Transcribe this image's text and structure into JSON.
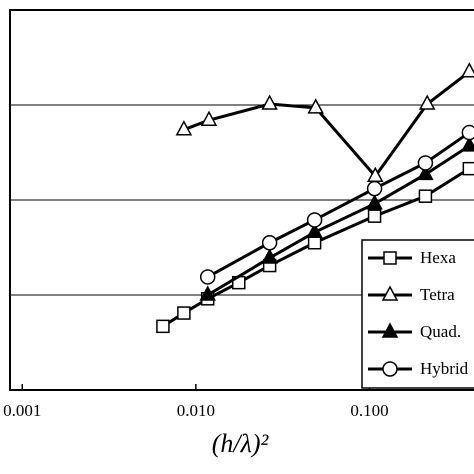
{
  "chart_data": {
    "type": "line",
    "x_label": "(h/λ)²",
    "xlog": true,
    "xlim": [
      0.00085,
      0.4
    ],
    "xticks": [
      {
        "value": 0.001,
        "label": "0.001"
      },
      {
        "value": 0.01,
        "label": "0.010"
      },
      {
        "value": 0.1,
        "label": "0.100"
      }
    ],
    "ylim": [
      0,
      4
    ],
    "yticks": [
      1,
      2,
      3
    ],
    "grid": true,
    "legend": "lower right",
    "series": [
      {
        "name": "Hexa",
        "color": "#000000",
        "marker": "square",
        "x": [
          0.00646,
          0.00853,
          0.0117,
          0.01766,
          0.0266,
          0.0483,
          0.107,
          0.21,
          0.376
        ],
        "values": [
          0.67,
          0.81,
          0.96,
          1.13,
          1.31,
          1.55,
          1.83,
          2.04,
          2.33
        ]
      },
      {
        "name": "Tetra",
        "color": "#000000",
        "marker": "triangle",
        "x": [
          0.00853,
          0.0119,
          0.0266,
          0.049,
          0.108,
          0.215,
          0.376
        ],
        "values": [
          2.74,
          2.84,
          3.01,
          2.97,
          2.25,
          3.01,
          3.35
        ]
      },
      {
        "name": "Quad.",
        "color": "#000000",
        "marker": "filled-triangle",
        "x": [
          0.0117,
          0.0266,
          0.0483,
          0.107,
          0.21,
          0.376
        ],
        "values": [
          1.0,
          1.39,
          1.66,
          1.96,
          2.27,
          2.57
        ]
      },
      {
        "name": "Hybrid",
        "color": "#000000",
        "marker": "circle",
        "x": [
          0.0117,
          0.0266,
          0.0483,
          0.107,
          0.21,
          0.376
        ],
        "values": [
          1.19,
          1.55,
          1.79,
          2.12,
          2.39,
          2.71
        ]
      }
    ]
  }
}
